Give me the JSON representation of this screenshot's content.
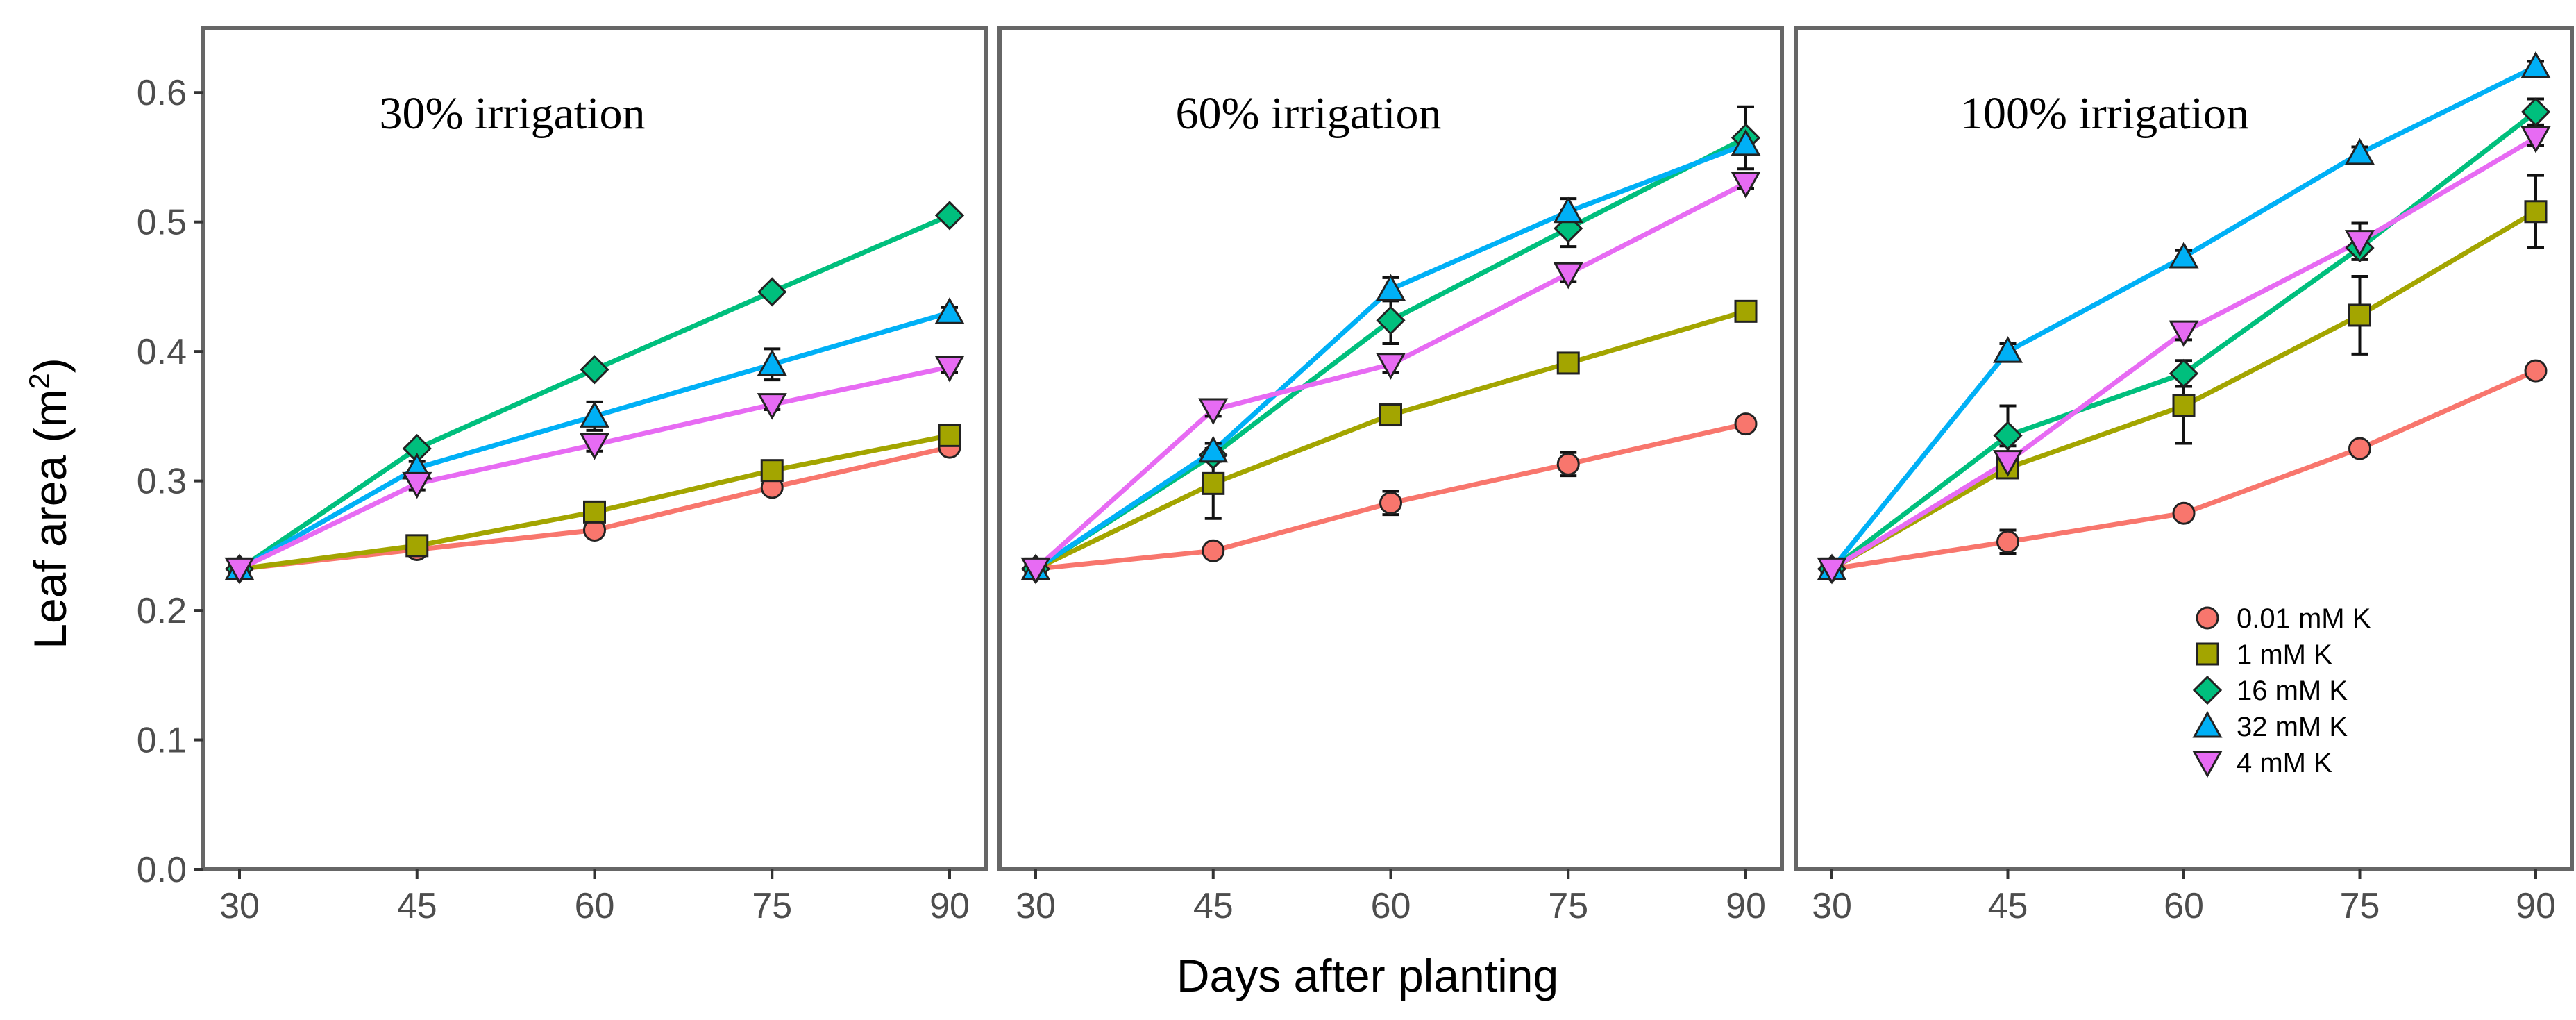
{
  "chart_data": {
    "type": "line",
    "ylabel": "Leaf area (m",
    "ylabel_superscript": "2",
    "ylabel_close": ")",
    "xlabel": "Days after planting",
    "x": [
      30,
      45,
      60,
      75,
      90
    ],
    "x_tick_labels": [
      "30",
      "45",
      "60",
      "75",
      "90"
    ],
    "ylim": [
      0,
      0.65
    ],
    "y_ticks": [
      0.0,
      0.1,
      0.2,
      0.3,
      0.4,
      0.5,
      0.6
    ],
    "y_tick_labels": [
      "0.0",
      "0.1",
      "0.2",
      "0.3",
      "0.4",
      "0.5",
      "0.6"
    ],
    "legend_position": "bottom-right of third panel",
    "series_style": [
      {
        "name": "0.01 mM K",
        "color": "#F8766D",
        "marker": "circle"
      },
      {
        "name": "1 mM K",
        "color": "#A3A500",
        "marker": "square"
      },
      {
        "name": "16 mM  K",
        "color": "#00BF7D",
        "marker": "diamond"
      },
      {
        "name": "32 mM K",
        "color": "#00B0F6",
        "marker": "triangle-up"
      },
      {
        "name": "4 mM  K",
        "color": "#E76BF3",
        "marker": "triangle-down"
      }
    ],
    "panels": [
      {
        "title": "30% irrigation",
        "series": [
          {
            "name": "0.01 mM K",
            "values": [
              0.232,
              0.247,
              0.262,
              0.295,
              0.326
            ],
            "errors": [
              0,
              0.004,
              0.004,
              0.005,
              0.004
            ]
          },
          {
            "name": "1 mM K",
            "values": [
              0.232,
              0.25,
              0.276,
              0.308,
              0.335
            ],
            "errors": [
              0,
              0.005,
              0.006,
              0.005,
              0.005
            ]
          },
          {
            "name": "16 mM  K",
            "values": [
              0.232,
              0.325,
              0.386,
              0.446,
              0.505
            ],
            "errors": [
              0,
              0.004,
              0.004,
              0.004,
              0.003
            ]
          },
          {
            "name": "32 mM K",
            "values": [
              0.232,
              0.31,
              0.35,
              0.39,
              0.43
            ],
            "errors": [
              0,
              0.005,
              0.011,
              0.012,
              0.004
            ]
          },
          {
            "name": "4 mM  K",
            "values": [
              0.232,
              0.298,
              0.328,
              0.359,
              0.388
            ],
            "errors": [
              0,
              0.005,
              0.005,
              0.004,
              0.004
            ]
          }
        ]
      },
      {
        "title": "60% irrigation",
        "series": [
          {
            "name": "0.01 mM K",
            "values": [
              0.232,
              0.246,
              0.283,
              0.313,
              0.344
            ],
            "errors": [
              0,
              0.004,
              0.009,
              0.009,
              0.004
            ]
          },
          {
            "name": "1 mM K",
            "values": [
              0.232,
              0.298,
              0.351,
              0.391,
              0.431
            ],
            "errors": [
              0,
              0.027,
              0.007,
              0.006,
              0.004
            ]
          },
          {
            "name": "16 mM  K",
            "values": [
              0.232,
              0.32,
              0.424,
              0.495,
              0.565
            ],
            "errors": [
              0,
              0.005,
              0.018,
              0.014,
              0.024
            ]
          },
          {
            "name": "32 mM K",
            "values": [
              0.232,
              0.323,
              0.448,
              0.508,
              0.56
            ],
            "errors": [
              0,
              0.006,
              0.009,
              0.01,
              0.006
            ]
          },
          {
            "name": "4 mM  K",
            "values": [
              0.232,
              0.355,
              0.39,
              0.46,
              0.53
            ],
            "errors": [
              0,
              0.005,
              0.006,
              0.006,
              0.004
            ]
          }
        ]
      },
      {
        "title": "100% irrigation",
        "series": [
          {
            "name": "0.01 mM K",
            "values": [
              0.232,
              0.253,
              0.275,
              0.325,
              0.385
            ],
            "errors": [
              0,
              0.009,
              0.004,
              0.004,
              0.004
            ]
          },
          {
            "name": "1 mM K",
            "values": [
              0.232,
              0.31,
              0.358,
              0.428,
              0.508
            ],
            "errors": [
              0,
              0.006,
              0.029,
              0.03,
              0.028
            ]
          },
          {
            "name": "16 mM  K",
            "values": [
              0.232,
              0.335,
              0.383,
              0.48,
              0.585
            ],
            "errors": [
              0,
              0.023,
              0.01,
              0.009,
              0.01
            ]
          },
          {
            "name": "32 mM K",
            "values": [
              0.232,
              0.4,
              0.473,
              0.553,
              0.62
            ],
            "errors": [
              0,
              0.006,
              0.005,
              0.005,
              0.004
            ]
          },
          {
            "name": "4 mM  K",
            "values": [
              0.232,
              0.315,
              0.415,
              0.485,
              0.565
            ],
            "errors": [
              0,
              0.012,
              0.006,
              0.014,
              0.006
            ]
          }
        ]
      }
    ]
  }
}
